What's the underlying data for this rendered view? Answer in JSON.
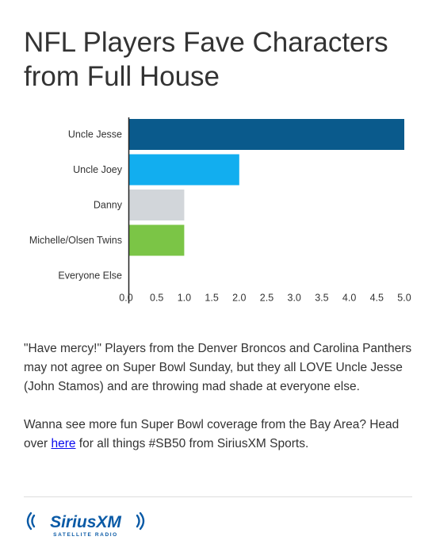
{
  "title": "NFL Players Fave Characters from Full House",
  "chart_data": {
    "type": "bar",
    "orientation": "horizontal",
    "categories": [
      "Uncle Jesse",
      "Uncle Joey",
      "Danny",
      "Michelle/Olsen Twins",
      "Everyone Else"
    ],
    "values": [
      5,
      2,
      1,
      1,
      0
    ],
    "colors": [
      "#0a5a8c",
      "#12aeef",
      "#d2d6da",
      "#7bc546",
      "#cccccc"
    ],
    "xlim": [
      0,
      5
    ],
    "xticks": [
      "0.0",
      "0.5",
      "1.0",
      "1.5",
      "2.0",
      "2.5",
      "3.0",
      "3.5",
      "4.0",
      "4.5",
      "5.0"
    ],
    "grid": false
  },
  "description": {
    "paragraph1": "\"Have mercy!\" Players from the Denver Broncos and Carolina Panthers may not agree on Super Bowl Sunday, but they all LOVE Uncle Jesse (John Stamos) and are throwing mad shade at everyone else.",
    "paragraph2_before": "Wanna see more fun Super Bowl coverage from the Bay Area? Head over ",
    "link_text": "here",
    "paragraph2_after": " for all things #SB50 from SiriusXM Sports."
  },
  "logo": {
    "brand": "SiriusXM",
    "tagline": "SATELLITE RADIO",
    "color": "#0a5aa6",
    "icon": "sound-waves-icon"
  }
}
